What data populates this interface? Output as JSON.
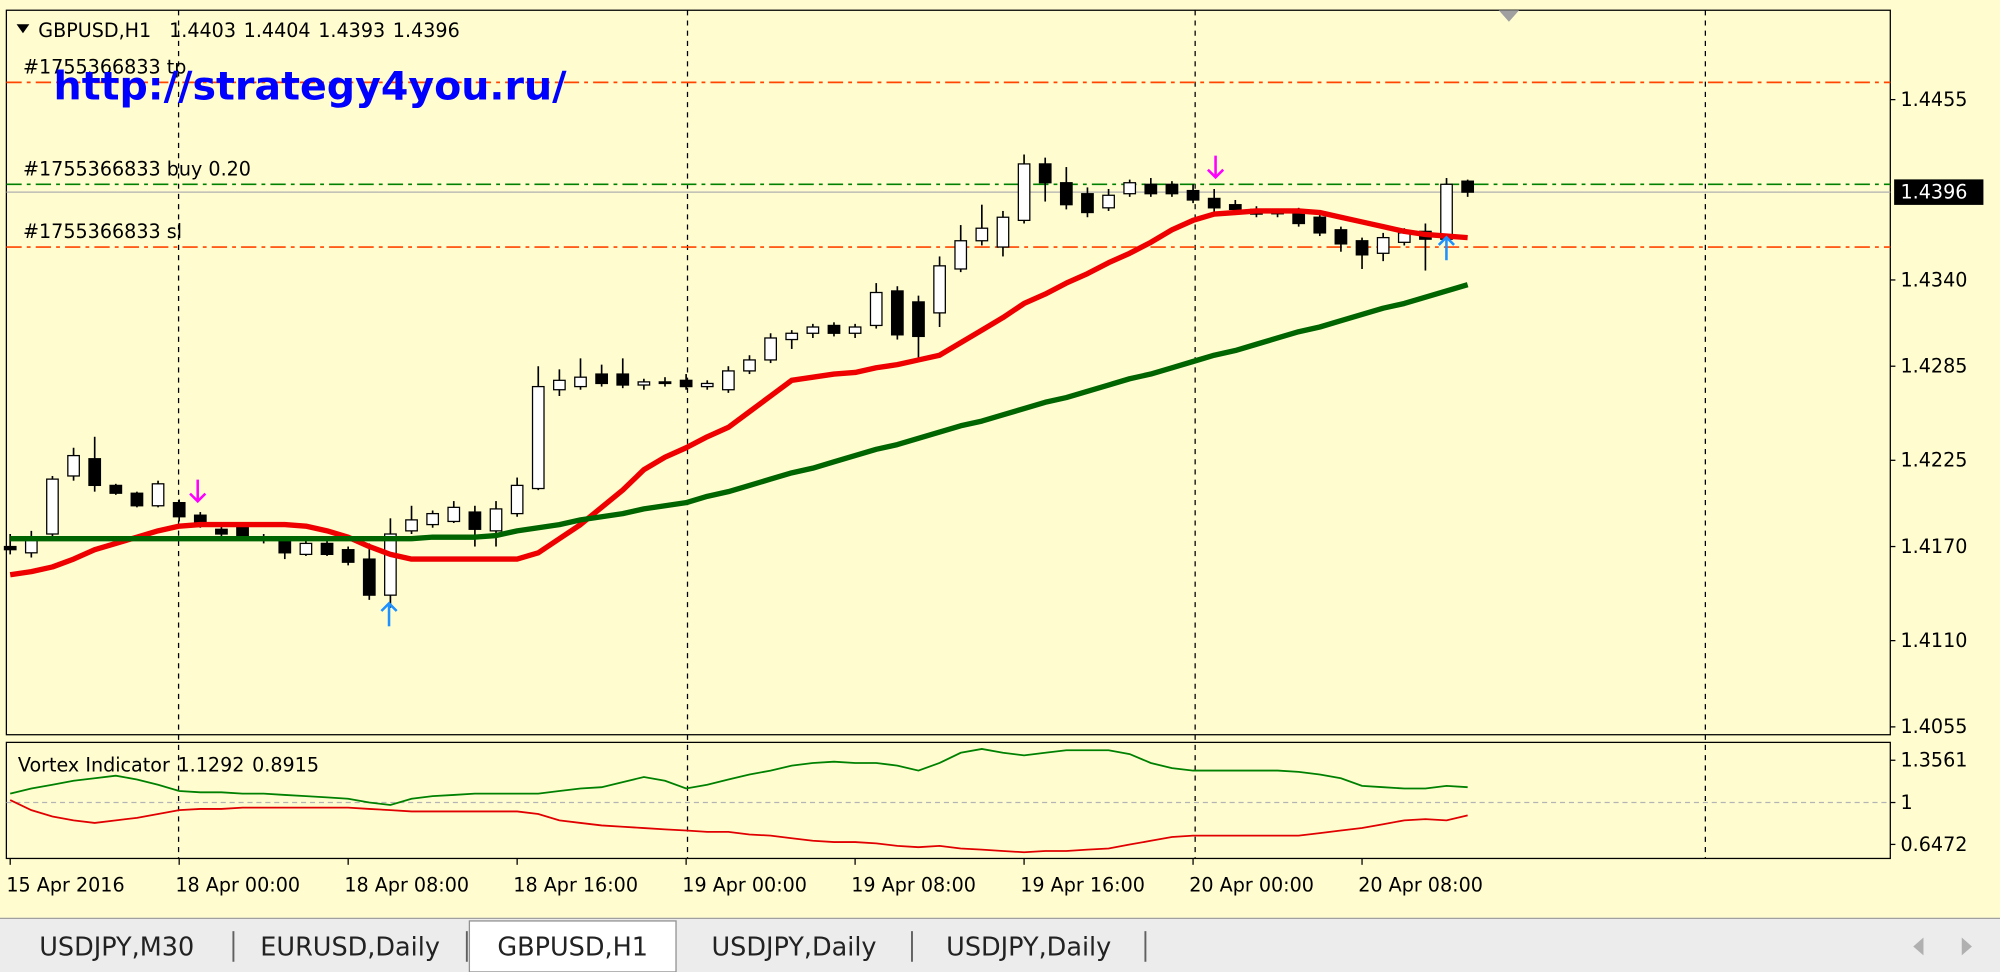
{
  "chart_data": [
    {
      "type": "candlestick",
      "symbol": "GBPUSD,H1",
      "watermark": "http://strategy4you.ru/",
      "categories": [
        "15 Apr 2016",
        null,
        null,
        null,
        null,
        null,
        null,
        null,
        "18 Apr 00:00",
        null,
        null,
        null,
        null,
        null,
        null,
        null,
        "18 Apr 08:00",
        null,
        null,
        null,
        null,
        null,
        null,
        null,
        "18 Apr 16:00",
        null,
        null,
        null,
        null,
        null,
        null,
        null,
        "19 Apr 00:00",
        null,
        null,
        null,
        null,
        null,
        null,
        null,
        "19 Apr 08:00",
        null,
        null,
        null,
        null,
        null,
        null,
        null,
        "19 Apr 16:00",
        null,
        null,
        null,
        null,
        null,
        null,
        null,
        "20 Apr 00:00",
        null,
        null,
        null,
        null,
        null,
        null,
        null,
        "20 Apr 08:00",
        null,
        null,
        null,
        null,
        null
      ],
      "open": [
        1.417,
        1.4166,
        1.4178,
        1.4215,
        1.4226,
        1.4209,
        1.4204,
        1.4196,
        1.4198,
        1.419,
        1.4181,
        1.4183,
        1.4176,
        1.4174,
        1.4165,
        1.4172,
        1.4168,
        1.4162,
        1.4139,
        1.418,
        1.4184,
        1.4186,
        1.4192,
        1.418,
        1.4191,
        1.4207,
        1.427,
        1.4272,
        1.428,
        1.428,
        1.4273,
        1.4275,
        1.4276,
        1.4272,
        1.427,
        1.4282,
        1.4289,
        1.4302,
        1.4306,
        1.4311,
        1.4306,
        1.4311,
        1.4333,
        1.4326,
        1.4319,
        1.4347,
        1.4365,
        1.4361,
        1.4378,
        1.4414,
        1.4402,
        1.4395,
        1.4386,
        1.4395,
        1.4401,
        1.4401,
        1.4397,
        1.4392,
        1.4388,
        1.4385,
        1.4383,
        1.4384,
        1.438,
        1.4372,
        1.4365,
        1.4357,
        1.4364,
        1.4371,
        1.4366,
        1.4403
      ],
      "high": [
        1.4178,
        1.418,
        1.4215,
        1.4233,
        1.424,
        1.421,
        1.4205,
        1.4212,
        1.42,
        1.4192,
        1.4184,
        1.4185,
        1.4178,
        1.4176,
        1.4174,
        1.4174,
        1.417,
        1.4172,
        1.4188,
        1.4196,
        1.4193,
        1.4199,
        1.4196,
        1.4199,
        1.4214,
        1.4285,
        1.4283,
        1.429,
        1.4286,
        1.429,
        1.4277,
        1.4278,
        1.428,
        1.4276,
        1.4285,
        1.4292,
        1.4306,
        1.4308,
        1.4312,
        1.4313,
        1.4312,
        1.4338,
        1.4336,
        1.433,
        1.4355,
        1.4375,
        1.4388,
        1.4384,
        1.442,
        1.4418,
        1.4412,
        1.4399,
        1.4398,
        1.4404,
        1.4405,
        1.4403,
        1.4401,
        1.4398,
        1.4391,
        1.4387,
        1.4385,
        1.4386,
        1.4382,
        1.4374,
        1.4367,
        1.437,
        1.4373,
        1.4376,
        1.4405,
        1.4404
      ],
      "low": [
        1.4165,
        1.4163,
        1.4176,
        1.4212,
        1.4205,
        1.4203,
        1.4195,
        1.4195,
        1.4186,
        1.4182,
        1.4176,
        1.4176,
        1.4172,
        1.4162,
        1.4164,
        1.4164,
        1.4158,
        1.4136,
        1.4131,
        1.4178,
        1.4182,
        1.4185,
        1.417,
        1.417,
        1.4189,
        1.4206,
        1.4266,
        1.427,
        1.4272,
        1.4271,
        1.427,
        1.4272,
        1.427,
        1.427,
        1.4268,
        1.428,
        1.4287,
        1.4296,
        1.4303,
        1.4304,
        1.4303,
        1.4309,
        1.4302,
        1.429,
        1.431,
        1.4345,
        1.4362,
        1.4355,
        1.4376,
        1.439,
        1.4385,
        1.438,
        1.4384,
        1.4393,
        1.4393,
        1.4393,
        1.4389,
        1.4383,
        1.4382,
        1.438,
        1.438,
        1.4374,
        1.4368,
        1.4358,
        1.4347,
        1.4352,
        1.4362,
        1.4346,
        1.436,
        1.4393
      ],
      "close": [
        1.4168,
        1.4176,
        1.4213,
        1.4228,
        1.4209,
        1.4204,
        1.4196,
        1.421,
        1.4189,
        1.4183,
        1.4178,
        1.4177,
        1.4174,
        1.4166,
        1.4172,
        1.4165,
        1.416,
        1.4139,
        1.4178,
        1.4187,
        1.4191,
        1.4195,
        1.4181,
        1.4194,
        1.4209,
        1.4272,
        1.4276,
        1.4278,
        1.4274,
        1.4273,
        1.4275,
        1.4274,
        1.4272,
        1.4274,
        1.4282,
        1.4289,
        1.4303,
        1.4306,
        1.431,
        1.4306,
        1.431,
        1.4332,
        1.4305,
        1.4304,
        1.4349,
        1.4365,
        1.4373,
        1.438,
        1.4414,
        1.4402,
        1.4388,
        1.4383,
        1.4394,
        1.4402,
        1.4395,
        1.4395,
        1.4391,
        1.4386,
        1.4385,
        1.4382,
        1.4383,
        1.4376,
        1.437,
        1.4363,
        1.4356,
        1.4367,
        1.437,
        1.4366,
        1.4401,
        1.4396
      ],
      "up_color": "#ffffff",
      "down_color": "#000000",
      "overlays": [
        {
          "color": "#ee0000",
          "values": [
            1.4152,
            1.4154,
            1.4157,
            1.4162,
            1.4168,
            1.4172,
            1.4176,
            1.418,
            1.4183,
            1.4184,
            1.4184,
            1.4184,
            1.4184,
            1.4184,
            1.4183,
            1.418,
            1.4176,
            1.417,
            1.4165,
            1.4162,
            1.4162,
            1.4162,
            1.4162,
            1.4162,
            1.4162,
            1.4166,
            1.4175,
            1.4184,
            1.4195,
            1.4206,
            1.4219,
            1.4227,
            1.4233,
            1.424,
            1.4246,
            1.4256,
            1.4266,
            1.4276,
            1.4278,
            1.428,
            1.4281,
            1.4284,
            1.4286,
            1.4289,
            1.4292,
            1.43,
            1.4308,
            1.4316,
            1.4325,
            1.4331,
            1.4338,
            1.4344,
            1.4351,
            1.4357,
            1.4364,
            1.4372,
            1.4378,
            1.4382,
            1.4383,
            1.4384,
            1.4384,
            1.4384,
            1.4383,
            1.438,
            1.4377,
            1.4374,
            1.4371,
            1.4369,
            1.4368,
            1.4367
          ]
        },
        {
          "color": "#006400",
          "values": [
            1.4175,
            1.4175,
            1.4175,
            1.4175,
            1.4175,
            1.4175,
            1.4175,
            1.4175,
            1.4175,
            1.4175,
            1.4175,
            1.4175,
            1.4175,
            1.4175,
            1.4175,
            1.4175,
            1.4175,
            1.4175,
            1.4175,
            1.4175,
            1.4176,
            1.4176,
            1.4176,
            1.4177,
            1.418,
            1.4182,
            1.4184,
            1.4187,
            1.4189,
            1.4191,
            1.4194,
            1.4196,
            1.4198,
            1.4202,
            1.4205,
            1.4209,
            1.4213,
            1.4217,
            1.422,
            1.4224,
            1.4228,
            1.4232,
            1.4235,
            1.4239,
            1.4243,
            1.4247,
            1.425,
            1.4254,
            1.4258,
            1.4262,
            1.4265,
            1.4269,
            1.4273,
            1.4277,
            1.428,
            1.4284,
            1.4288,
            1.4292,
            1.4295,
            1.4299,
            1.4303,
            1.4307,
            1.431,
            1.4314,
            1.4318,
            1.4322,
            1.4325,
            1.4329,
            1.4333,
            1.4337
          ]
        }
      ],
      "levels": [
        {
          "label": "#1755366833 tp",
          "value": 1.4466,
          "color": "#ff4500"
        },
        {
          "label": "#1755366833 buy 0.20",
          "value": 1.4401,
          "color": "#008000"
        },
        {
          "label": "#1755366833 sl",
          "value": 1.4361,
          "color": "#ff4500"
        }
      ],
      "price_line_color": "#b0b0b0",
      "ylim": [
        1.405,
        1.4512
      ],
      "yticks": [
        1.4055,
        {
          "value": 1.411,
          "label": "1.4110"
        },
        {
          "value": 1.417,
          "label": "1.4170"
        },
        1.4225,
        1.4285,
        {
          "value": 1.434,
          "label": "1.4340"
        },
        1.4455
      ]
    },
    {
      "type": "line",
      "title": "Vortex Indicator",
      "series": [
        {
          "color": "#008000",
          "values": [
            1.075,
            1.118,
            1.15,
            1.183,
            1.204,
            1.226,
            1.194,
            1.15,
            1.097,
            1.086,
            1.086,
            1.075,
            1.075,
            1.064,
            1.054,
            1.043,
            1.032,
            1.0,
            0.979,
            1.032,
            1.054,
            1.064,
            1.075,
            1.075,
            1.075,
            1.075,
            1.097,
            1.118,
            1.129,
            1.172,
            1.215,
            1.183,
            1.118,
            1.15,
            1.194,
            1.236,
            1.269,
            1.311,
            1.333,
            1.344,
            1.333,
            1.333,
            1.311,
            1.269,
            1.333,
            1.419,
            1.451,
            1.419,
            1.397,
            1.419,
            1.44,
            1.44,
            1.44,
            1.408,
            1.333,
            1.29,
            1.269,
            1.269,
            1.269,
            1.269,
            1.269,
            1.258,
            1.236,
            1.204,
            1.14,
            1.129,
            1.118,
            1.118,
            1.14,
            1.1292
          ]
        },
        {
          "color": "#e00000",
          "values": [
            1.021,
            0.936,
            0.882,
            0.85,
            0.828,
            0.85,
            0.871,
            0.903,
            0.936,
            0.946,
            0.946,
            0.957,
            0.957,
            0.957,
            0.957,
            0.957,
            0.957,
            0.946,
            0.936,
            0.925,
            0.925,
            0.925,
            0.925,
            0.925,
            0.925,
            0.903,
            0.85,
            0.828,
            0.807,
            0.796,
            0.785,
            0.774,
            0.764,
            0.753,
            0.753,
            0.731,
            0.721,
            0.699,
            0.678,
            0.667,
            0.667,
            0.656,
            0.635,
            0.624,
            0.635,
            0.613,
            0.603,
            0.592,
            0.581,
            0.592,
            0.592,
            0.603,
            0.613,
            0.646,
            0.678,
            0.71,
            0.721,
            0.721,
            0.721,
            0.721,
            0.721,
            0.721,
            0.742,
            0.764,
            0.785,
            0.817,
            0.85,
            0.86,
            0.85,
            0.8915
          ]
        }
      ],
      "level": 1,
      "ylim": [
        0.529,
        1.5065
      ],
      "yticks": [
        0.6472,
        1,
        1.3561
      ]
    }
  ],
  "tabs": [
    {
      "label": "USDJPY,M30",
      "active": false
    },
    {
      "label": "EURUSD,Daily",
      "active": false
    },
    {
      "label": "GBPUSD,H1",
      "active": true
    },
    {
      "label": "USDJPY,Daily",
      "active": false
    },
    {
      "label": "USDJPY,Daily",
      "active": false
    }
  ]
}
